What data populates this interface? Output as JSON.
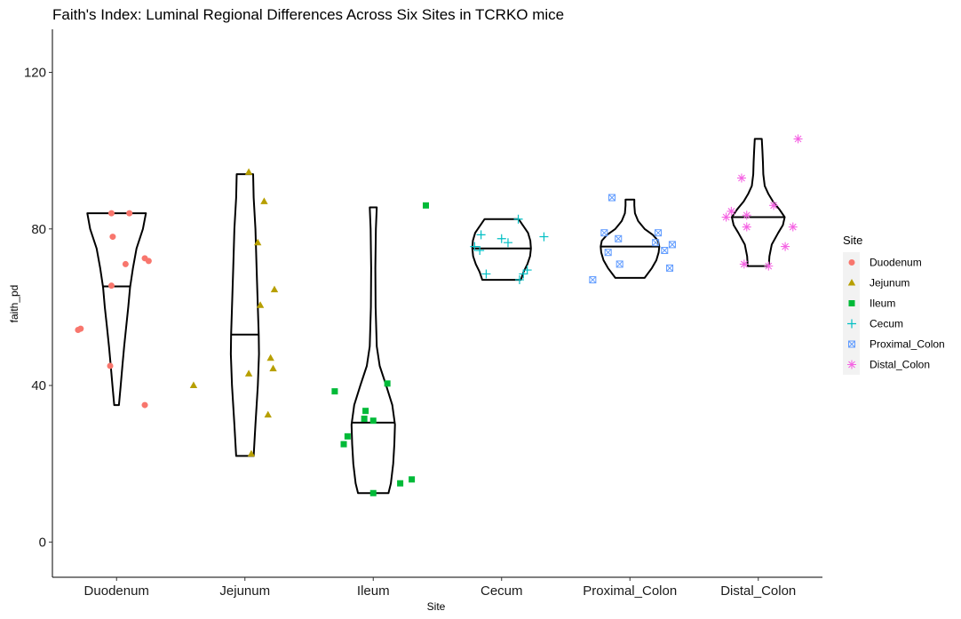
{
  "chart_data": {
    "type": "violin",
    "title": "Faith's Index: Luminal Regional Differences Across Six Sites in TCRKO mice",
    "xlabel": "Site",
    "ylabel": "faith_pd",
    "ylim": [
      -9,
      131
    ],
    "yticks": [
      0,
      40,
      80,
      120
    ],
    "grid": false,
    "legend_title": "Site",
    "legend_position": "right",
    "categories": [
      "Duodenum",
      "Jejunum",
      "Ileum",
      "Cecum",
      "Proximal_Colon",
      "Distal_Colon"
    ],
    "series": [
      {
        "name": "Duodenum",
        "color": "#F8766D",
        "shape": "circle",
        "min": 35,
        "max": 84,
        "median": 65.3,
        "profile": [
          [
            35,
            0.08
          ],
          [
            40,
            0.14
          ],
          [
            45,
            0.2
          ],
          [
            50,
            0.26
          ],
          [
            55,
            0.33
          ],
          [
            60,
            0.4
          ],
          [
            65,
            0.46
          ],
          [
            70,
            0.56
          ],
          [
            75,
            0.68
          ],
          [
            80,
            0.9
          ],
          [
            84,
            1.0
          ]
        ],
        "points": [
          [
            -0.28,
            54.5
          ],
          [
            -0.3,
            54.2
          ],
          [
            -0.04,
            84
          ],
          [
            0.1,
            84
          ],
          [
            -0.03,
            78
          ],
          [
            0.07,
            71
          ],
          [
            0.22,
            72.5
          ],
          [
            0.25,
            71.8
          ],
          [
            -0.04,
            65.5
          ],
          [
            -0.05,
            45
          ],
          [
            0.22,
            35
          ]
        ]
      },
      {
        "name": "Jejunum",
        "color": "#B79F00",
        "shape": "triangle",
        "min": 22,
        "max": 94,
        "median": 53,
        "profile": [
          [
            22,
            0.3
          ],
          [
            30,
            0.36
          ],
          [
            40,
            0.44
          ],
          [
            48,
            0.48
          ],
          [
            53,
            0.47
          ],
          [
            60,
            0.44
          ],
          [
            70,
            0.4
          ],
          [
            80,
            0.36
          ],
          [
            88,
            0.3
          ],
          [
            94,
            0.28
          ]
        ],
        "points": [
          [
            0.03,
            94.5
          ],
          [
            0.15,
            87
          ],
          [
            0.1,
            76.5
          ],
          [
            0.23,
            64.5
          ],
          [
            0.12,
            60.5
          ],
          [
            0.2,
            47
          ],
          [
            0.22,
            44.3
          ],
          [
            0.03,
            43
          ],
          [
            -0.4,
            40
          ],
          [
            0.18,
            32.5
          ],
          [
            0.05,
            22.5
          ]
        ]
      },
      {
        "name": "Ileum",
        "color": "#00BA38",
        "shape": "square",
        "min": 12.5,
        "max": 85.5,
        "median": 30.5,
        "profile": [
          [
            12.5,
            0.52
          ],
          [
            15,
            0.6
          ],
          [
            20,
            0.68
          ],
          [
            25,
            0.72
          ],
          [
            30,
            0.74
          ],
          [
            35,
            0.65
          ],
          [
            40,
            0.44
          ],
          [
            45,
            0.22
          ],
          [
            50,
            0.12
          ],
          [
            60,
            0.08
          ],
          [
            70,
            0.07
          ],
          [
            80,
            0.09
          ],
          [
            85.5,
            0.12
          ]
        ],
        "points": [
          [
            0.41,
            86
          ],
          [
            -0.3,
            38.5
          ],
          [
            0.11,
            40.5
          ],
          [
            -0.06,
            33.5
          ],
          [
            -0.07,
            31.5
          ],
          [
            0.0,
            31
          ],
          [
            -0.2,
            27
          ],
          [
            -0.23,
            25
          ],
          [
            0.21,
            15
          ],
          [
            0.3,
            16
          ],
          [
            0.0,
            12.5
          ]
        ]
      },
      {
        "name": "Cecum",
        "color": "#00BFC4",
        "shape": "plus",
        "min": 67,
        "max": 82.5,
        "median": 75,
        "profile": [
          [
            67,
            0.66
          ],
          [
            69,
            0.75
          ],
          [
            71,
            0.88
          ],
          [
            73,
            0.97
          ],
          [
            75,
            1.0
          ],
          [
            77,
            0.98
          ],
          [
            79,
            0.9
          ],
          [
            81,
            0.72
          ],
          [
            82.5,
            0.58
          ]
        ],
        "points": [
          [
            0.13,
            82.5
          ],
          [
            -0.16,
            78.5
          ],
          [
            0.0,
            77.5
          ],
          [
            0.05,
            76.5
          ],
          [
            0.33,
            78
          ],
          [
            -0.21,
            75.5
          ],
          [
            -0.17,
            74.5
          ],
          [
            -0.12,
            68.5
          ],
          [
            0.2,
            69.5
          ],
          [
            0.17,
            68.5
          ],
          [
            0.14,
            67
          ]
        ]
      },
      {
        "name": "Proximal_Colon",
        "color": "#619CFF",
        "shape": "square-x",
        "min": 67.5,
        "max": 87.5,
        "median": 75.5,
        "profile": [
          [
            67.5,
            0.5
          ],
          [
            70,
            0.75
          ],
          [
            72,
            0.9
          ],
          [
            74,
            0.98
          ],
          [
            75.5,
            1.0
          ],
          [
            77,
            0.96
          ],
          [
            78.5,
            0.78
          ],
          [
            80,
            0.5
          ],
          [
            82,
            0.28
          ],
          [
            84,
            0.17
          ],
          [
            86,
            0.15
          ],
          [
            87.5,
            0.15
          ]
        ],
        "points": [
          [
            -0.14,
            88
          ],
          [
            -0.2,
            79
          ],
          [
            0.22,
            79
          ],
          [
            -0.09,
            77.5
          ],
          [
            0.2,
            76.5
          ],
          [
            0.33,
            76
          ],
          [
            0.27,
            74.5
          ],
          [
            -0.17,
            74
          ],
          [
            -0.08,
            71
          ],
          [
            0.31,
            70
          ],
          [
            -0.29,
            67
          ]
        ]
      },
      {
        "name": "Distal_Colon",
        "color": "#F564E3",
        "shape": "asterisk",
        "min": 70.5,
        "max": 103,
        "median": 83,
        "profile": [
          [
            70.5,
            0.36
          ],
          [
            73,
            0.38
          ],
          [
            76,
            0.46
          ],
          [
            79,
            0.68
          ],
          [
            81,
            0.84
          ],
          [
            83,
            0.9
          ],
          [
            85,
            0.72
          ],
          [
            87,
            0.5
          ],
          [
            89,
            0.34
          ],
          [
            91,
            0.22
          ],
          [
            94,
            0.17
          ],
          [
            97,
            0.16
          ],
          [
            100,
            0.14
          ],
          [
            103,
            0.12
          ]
        ],
        "points": [
          [
            0.31,
            103
          ],
          [
            -0.13,
            93
          ],
          [
            -0.21,
            84.5
          ],
          [
            -0.25,
            83
          ],
          [
            -0.09,
            83.5
          ],
          [
            0.12,
            86
          ],
          [
            -0.09,
            80.5
          ],
          [
            0.27,
            80.5
          ],
          [
            0.21,
            75.5
          ],
          [
            -0.11,
            71
          ],
          [
            0.08,
            70.5
          ]
        ]
      }
    ]
  }
}
